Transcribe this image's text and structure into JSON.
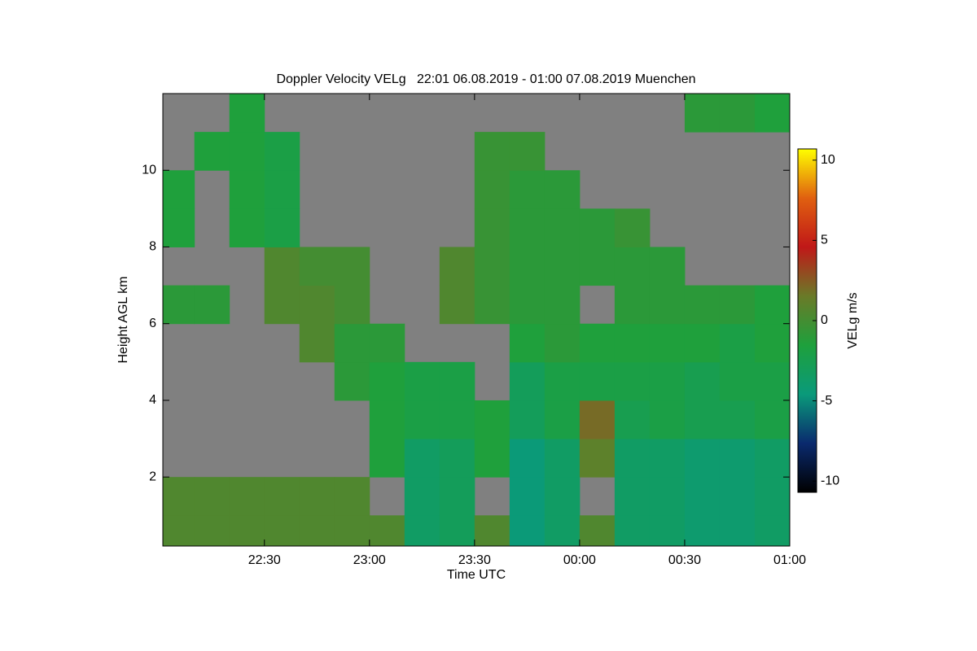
{
  "chart_data": {
    "type": "heatmap",
    "title": "Doppler Velocity VELg   22:01 06.08.2019 - 01:00 07.08.2019 Muenchen",
    "x_label": "Time UTC",
    "y_label": "Height AGL km",
    "colorbar_label": "VELg m/s",
    "xlim": [
      1,
      180
    ],
    "xticks": [
      {
        "value": 30,
        "label": "22:30"
      },
      {
        "value": 60,
        "label": "23:00"
      },
      {
        "value": 90,
        "label": "23:30"
      },
      {
        "value": 120,
        "label": "00:00"
      },
      {
        "value": 150,
        "label": "00:30"
      },
      {
        "value": 180,
        "label": "01:00"
      }
    ],
    "ylim": [
      0.2,
      12
    ],
    "yticks": [
      2,
      4,
      6,
      8,
      10
    ],
    "clim": [
      -10.7,
      10.7
    ],
    "cticks": [
      -10,
      -5,
      0,
      5,
      10
    ],
    "colormap": [
      "#000000",
      "#0a2a6e",
      "#0a9a7a",
      "#1ea03c",
      "#6a7a28",
      "#c01818",
      "#e06010",
      "#ffff00"
    ],
    "nan_color": "#808080",
    "x": [
      5,
      15,
      25,
      35,
      45,
      55,
      65,
      75,
      85,
      95,
      105,
      115,
      125,
      135,
      145,
      155,
      165,
      175
    ],
    "y": [
      0.5,
      1.5,
      2.5,
      3.5,
      4.5,
      5.5,
      6.5,
      7.5,
      8.5,
      9.5,
      10.5,
      11.5
    ],
    "z": [
      [
        0.5,
        0.5,
        null,
        null,
        null,
        null,
        -1,
        null,
        -1.5,
        -1.5,
        null,
        null
      ],
      [
        0.5,
        0.5,
        null,
        null,
        null,
        null,
        -1,
        null,
        null,
        null,
        -1.5,
        null
      ],
      [
        0.5,
        0.5,
        null,
        null,
        null,
        null,
        null,
        null,
        -1.5,
        -1.5,
        -1.5,
        -1.5
      ],
      [
        0.5,
        0.5,
        null,
        null,
        null,
        null,
        0.5,
        0.5,
        -2,
        -2,
        -2,
        null
      ],
      [
        0.5,
        0.5,
        null,
        null,
        null,
        0.5,
        0.5,
        0,
        null,
        null,
        null,
        null
      ],
      [
        0.5,
        0.5,
        null,
        null,
        -1,
        -1,
        0,
        0,
        null,
        null,
        null,
        null
      ],
      [
        0.5,
        null,
        -1.5,
        -1.5,
        -1.5,
        -1,
        null,
        null,
        null,
        null,
        null,
        null
      ],
      [
        -3.5,
        -3.5,
        -3.5,
        -2,
        -2,
        null,
        null,
        null,
        null,
        null,
        null,
        null
      ],
      [
        -3,
        -3,
        -3,
        -2,
        -2,
        null,
        0.5,
        0.5,
        null,
        null,
        null,
        null
      ],
      [
        0.5,
        null,
        -1.5,
        -1.5,
        null,
        null,
        -0.5,
        -0.5,
        -0.5,
        -0.5,
        -0.5,
        null
      ],
      [
        -4.5,
        -4.5,
        -4.5,
        -3,
        -3,
        -1.5,
        -1,
        -1,
        -1,
        -1,
        -0.5,
        null
      ],
      [
        -3.5,
        -3.5,
        -3.5,
        -2,
        -2,
        -1,
        -1,
        -1,
        -1,
        -1,
        null,
        null
      ],
      [
        0.5,
        null,
        1,
        2,
        -2,
        -1.5,
        null,
        -1,
        -1,
        null,
        null,
        null
      ],
      [
        -3.5,
        -3.5,
        -3.5,
        -2.5,
        -2,
        -1.5,
        -1,
        -1,
        -0.5,
        null,
        null,
        null
      ],
      [
        -3.5,
        -3.5,
        -3.5,
        -2,
        -2,
        -1.5,
        -1,
        -1,
        null,
        null,
        null,
        null
      ],
      [
        -4,
        -4,
        -4,
        -2.5,
        -2.5,
        -1.5,
        -1,
        null,
        null,
        null,
        null,
        -1
      ],
      [
        -4,
        -4,
        -4,
        -2.5,
        -2,
        -2,
        -1,
        null,
        null,
        null,
        null,
        -1
      ],
      [
        -3.5,
        -3.5,
        -3.5,
        -2,
        -2,
        -1.5,
        -1.5,
        null,
        null,
        null,
        null,
        -1.5
      ]
    ]
  }
}
